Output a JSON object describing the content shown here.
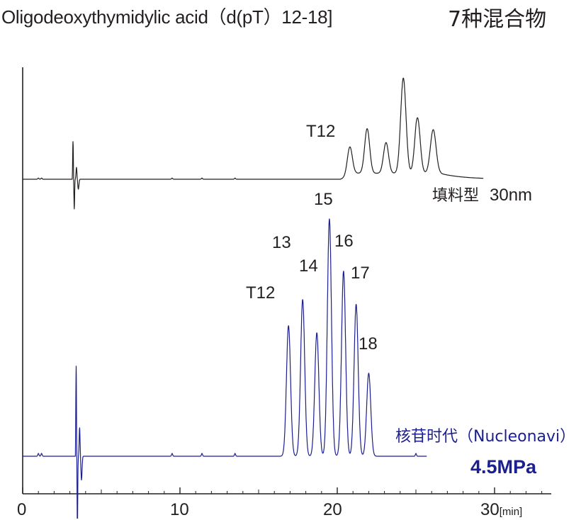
{
  "title": "Oligodeoxythymidylic acid（d(pT）12-18]",
  "subtitle": "7种混合物",
  "chart_data": {
    "type": "line",
    "x_unit": "[min]",
    "xlim": [
      0,
      33
    ],
    "x_ticks": [
      "0",
      "10",
      "20",
      "30"
    ],
    "grid": false,
    "legend": "none",
    "series": [
      {
        "name": "填料型",
        "label_suffix": "30nm",
        "color": "#231f20",
        "baseline_label": "T12",
        "x_end": 29.3,
        "injection_spike_x": 3.2,
        "peaks": [
          {
            "x": 20.8,
            "h": 0.29,
            "w": 0.16
          },
          {
            "x": 21.9,
            "h": 0.45,
            "w": 0.16
          },
          {
            "x": 23.1,
            "h": 0.31,
            "w": 0.16
          },
          {
            "x": 24.2,
            "h": 0.96,
            "w": 0.17
          },
          {
            "x": 25.1,
            "h": 0.56,
            "w": 0.17
          },
          {
            "x": 26.1,
            "h": 0.44,
            "w": 0.18
          }
        ]
      },
      {
        "name": "核苷时代（Nucleonavi）",
        "label_suffix": "4.5MPa",
        "color": "#1c1f8f",
        "x_end": 25.7,
        "injection_spike_x": 3.4,
        "peaks": [
          {
            "x": 16.9,
            "h": 0.55,
            "w": 0.13,
            "label": "T12"
          },
          {
            "x": 17.8,
            "h": 0.66,
            "w": 0.13,
            "label": "13"
          },
          {
            "x": 18.7,
            "h": 0.52,
            "w": 0.13,
            "label": "14"
          },
          {
            "x": 19.5,
            "h": 1.0,
            "w": 0.13,
            "label": "15"
          },
          {
            "x": 20.4,
            "h": 0.78,
            "w": 0.13,
            "label": "16"
          },
          {
            "x": 21.2,
            "h": 0.64,
            "w": 0.13,
            "label": "17"
          },
          {
            "x": 22.0,
            "h": 0.35,
            "w": 0.13,
            "label": "18"
          }
        ]
      }
    ]
  }
}
